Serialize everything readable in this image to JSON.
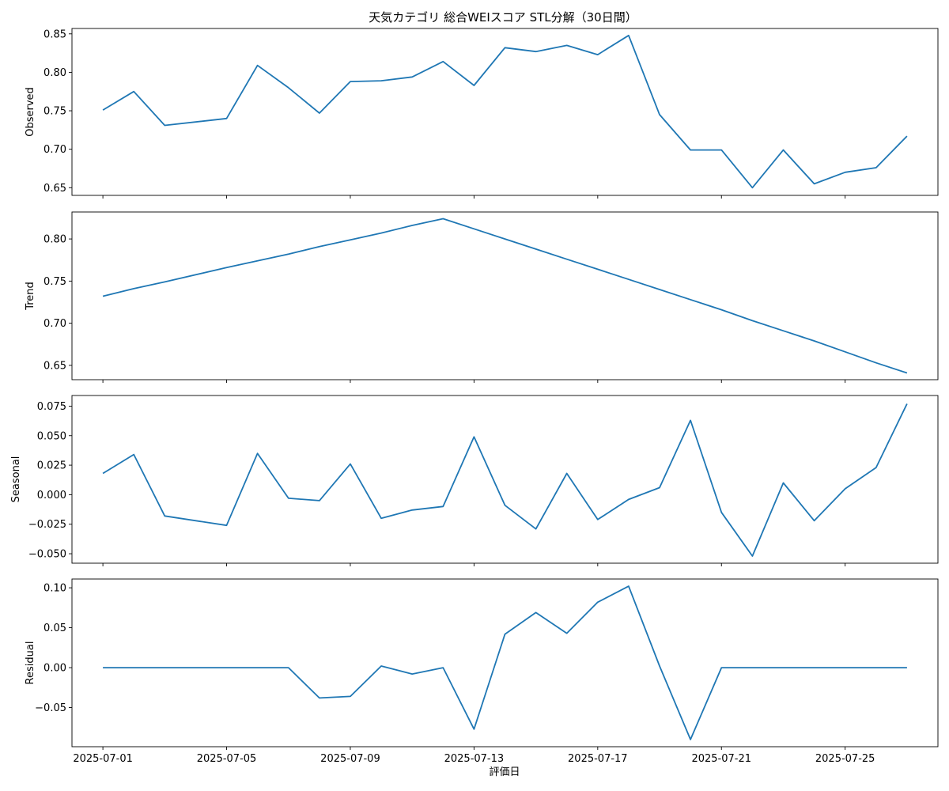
{
  "chart_data": {
    "type": "line",
    "title": "天気カテゴリ 総合WEIスコア STL分解（30日間）",
    "xlabel": "評価日",
    "x": [
      "2025-07-01",
      "2025-07-02",
      "2025-07-03",
      "2025-07-05",
      "2025-07-06",
      "2025-07-07",
      "2025-07-08",
      "2025-07-09",
      "2025-07-10",
      "2025-07-11",
      "2025-07-12",
      "2025-07-13",
      "2025-07-14",
      "2025-07-15",
      "2025-07-16",
      "2025-07-17",
      "2025-07-18",
      "2025-07-19",
      "2025-07-20",
      "2025-07-21",
      "2025-07-22",
      "2025-07-23",
      "2025-07-24",
      "2025-07-25",
      "2025-07-26",
      "2025-07-27"
    ],
    "x_ticks": [
      "2025-07-01",
      "2025-07-05",
      "2025-07-09",
      "2025-07-13",
      "2025-07-17",
      "2025-07-21",
      "2025-07-25"
    ],
    "x_range": [
      "2025-06-30",
      "2025-07-28"
    ],
    "color": "#1f77b4",
    "grid": false,
    "panels": [
      {
        "ylabel": "Observed",
        "ylim": [
          0.64,
          0.857
        ],
        "yticks": [
          "0.65",
          "0.70",
          "0.75",
          "0.80",
          "0.85"
        ],
        "values": [
          0.751,
          0.775,
          0.731,
          0.74,
          0.809,
          0.78,
          0.747,
          0.788,
          0.789,
          0.794,
          0.814,
          0.783,
          0.832,
          0.827,
          0.835,
          0.823,
          0.848,
          0.745,
          0.699,
          0.699,
          0.65,
          0.699,
          0.655,
          0.67,
          0.676,
          0.717
        ]
      },
      {
        "ylabel": "Trend",
        "ylim": [
          0.633,
          0.832
        ],
        "yticks": [
          "0.65",
          "0.70",
          "0.75",
          "0.80"
        ],
        "values": [
          0.732,
          0.741,
          0.749,
          0.766,
          0.774,
          0.782,
          0.791,
          0.799,
          0.807,
          0.816,
          0.824,
          0.812,
          0.8,
          0.788,
          0.776,
          0.764,
          0.752,
          0.74,
          0.728,
          0.716,
          0.703,
          0.691,
          0.679,
          0.666,
          0.653,
          0.641
        ]
      },
      {
        "ylabel": "Seasonal",
        "ylim": [
          -0.058,
          0.084
        ],
        "yticks": [
          "−0.050",
          "−0.025",
          "0.000",
          "0.025",
          "0.050",
          "0.075"
        ],
        "values": [
          0.018,
          0.034,
          -0.018,
          -0.026,
          0.035,
          -0.003,
          -0.005,
          0.026,
          -0.02,
          -0.013,
          -0.01,
          0.049,
          -0.009,
          -0.029,
          0.018,
          -0.021,
          -0.004,
          0.006,
          0.063,
          -0.015,
          -0.052,
          0.01,
          -0.022,
          0.005,
          0.023,
          0.077
        ]
      },
      {
        "ylabel": "Residual",
        "ylim": [
          -0.099,
          0.111
        ],
        "yticks": [
          "−0.05",
          "0.00",
          "0.05",
          "0.10"
        ],
        "values": [
          0.0,
          0.0,
          0.0,
          0.0,
          0.0,
          0.0,
          -0.038,
          -0.036,
          0.002,
          -0.008,
          0.0,
          -0.077,
          0.042,
          0.069,
          0.043,
          0.082,
          0.102,
          0.002,
          -0.09,
          0.0,
          0.0,
          0.0,
          0.0,
          0.0,
          0.0,
          0.0
        ]
      }
    ]
  }
}
